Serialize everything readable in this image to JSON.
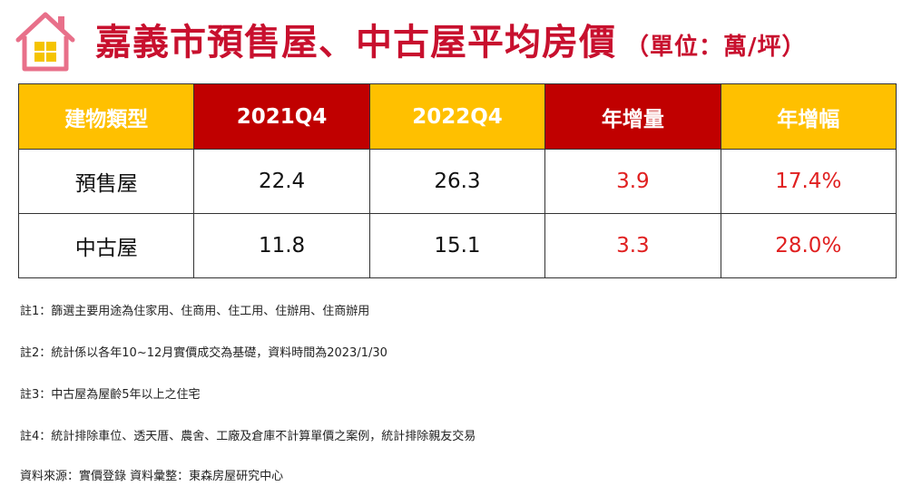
{
  "header": {
    "title": "嘉義市預售屋、中古屋平均房價",
    "unit": "（單位：萬/坪）",
    "icon": "house-icon"
  },
  "colors": {
    "accent_red": "#c00000",
    "accent_yellow": "#ffc000",
    "title_red": "#c8102e",
    "value_red": "#e02020"
  },
  "table": {
    "headers": [
      "建物類型",
      "2021Q4",
      "2022Q4",
      "年增量",
      "年增幅"
    ],
    "rows": [
      [
        "預售屋",
        "22.4",
        "26.3",
        "3.9",
        "17.4%"
      ],
      [
        "中古屋",
        "11.8",
        "15.1",
        "3.3",
        "28.0%"
      ]
    ]
  },
  "notes": [
    "註1：篩選主要用途為住家用、住商用、住工用、住辦用、住商辦用",
    "註2：統計係以各年10~12月實價成交為基礎，資料時間為2023/1/30",
    "註3：中古屋為屋齡5年以上之住宅",
    "註4：統計排除車位、透天厝、農舍、工廠及倉庫不計算單價之案例，統計排除親友交易",
    "資料來源：實價登錄 資料彙整：東森房屋研究中心"
  ]
}
